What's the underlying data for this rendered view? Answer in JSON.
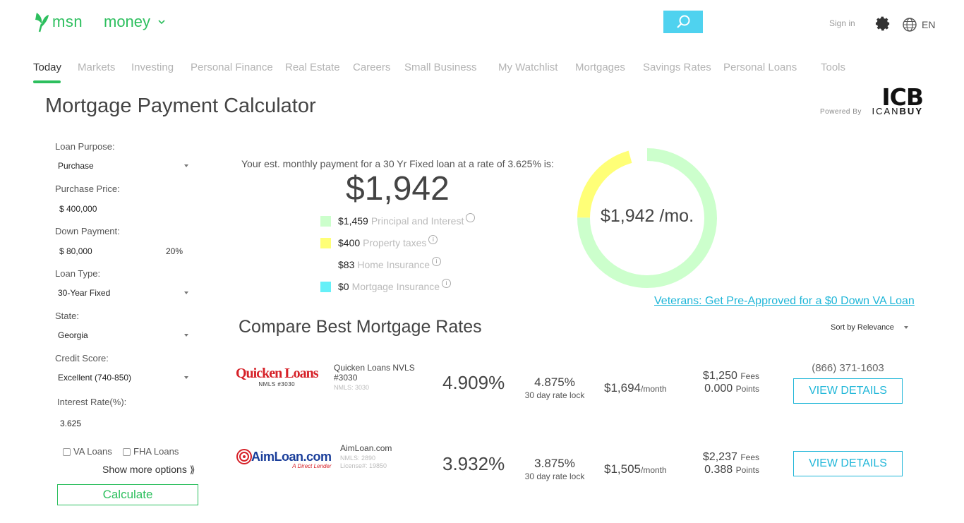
{
  "header": {
    "logo_text": "msn",
    "section": "money",
    "sign_in": "Sign in",
    "language": "EN"
  },
  "nav": {
    "items": [
      "Today",
      "Markets",
      "Investing",
      "Personal Finance",
      "Real Estate",
      "Careers",
      "Small Business",
      "My Watchlist",
      "Mortgages",
      "Savings Rates",
      "Personal Loans",
      "Tools"
    ],
    "active": "Today"
  },
  "page": {
    "title": "Mortgage Payment Calculator",
    "powered_by": "Powered By",
    "partner_short": "ICB",
    "partner_name_a": "ICAN",
    "partner_name_b": "BUY"
  },
  "form": {
    "loan_purpose_label": "Loan Purpose:",
    "loan_purpose_value": "Purchase",
    "purchase_price_label": "Purchase Price:",
    "purchase_price_value": "$ 400,000",
    "down_payment_label": "Down Payment:",
    "down_payment_value": "$ 80,000",
    "down_payment_pct": "20%",
    "loan_type_label": "Loan Type:",
    "loan_type_value": "30-Year Fixed",
    "state_label": "State:",
    "state_value": "Georgia",
    "credit_score_label": "Credit Score:",
    "credit_score_value": "Excellent (740-850)",
    "interest_rate_label": "Interest Rate(%):",
    "interest_rate_value": "3.625",
    "va_loans_label": "VA Loans",
    "fha_loans_label": "FHA Loans",
    "show_more": "Show more options ⟫",
    "calculate": "Calculate"
  },
  "summary": {
    "est_text": "Your est. monthly payment for a 30 Yr Fixed loan at a rate of 3.625% is:",
    "total": "$1,942",
    "donut_label": "$1,942 /mo.",
    "breakdown": [
      {
        "amount": "$1,459",
        "label": "Principal and Interest",
        "color": "#ccffcc",
        "value": 1459
      },
      {
        "amount": "$400",
        "label": "Property taxes",
        "color": "#ffff77",
        "value": 400
      },
      {
        "amount": "$83",
        "label": "Home Insurance",
        "color": "#ffffff",
        "value": 83
      },
      {
        "amount": "$0",
        "label": "Mortgage Insurance",
        "color": "#66f0f8",
        "value": 0
      }
    ],
    "va_link": "Veterans: Get Pre-Approved for a $0 Down VA Loan"
  },
  "compare": {
    "title": "Compare Best Mortgage Rates",
    "sort": "Sort by Relevance",
    "lenders": [
      {
        "logo_main": "Quicken Loans",
        "logo_sub": "NMLS #3030",
        "name": "Quicken Loans NVLS #3030",
        "nmls": "NMLS: 3030",
        "apr": "4.909%",
        "rate": "4.875%",
        "rate_lock": "30 day rate lock",
        "monthly": "$1,694",
        "monthly_unit": "/month",
        "fees": "$1,250",
        "fees_label": "Fees",
        "points": "0.000",
        "points_label": "Points",
        "phone": "(866) 371-1603",
        "button": "VIEW DETAILS"
      },
      {
        "logo_main": "AimLoan.com",
        "logo_sub": "A Direct Lender",
        "name": "AimLoan.com",
        "nmls": "NMLS: 2890",
        "license": "License#: 19850",
        "apr": "3.932%",
        "rate": "3.875%",
        "rate_lock": "30 day rate lock",
        "monthly": "$1,505",
        "monthly_unit": "/month",
        "fees": "$2,237",
        "fees_label": "Fees",
        "points": "0.388",
        "points_label": "Points",
        "button": "VIEW DETAILS"
      }
    ]
  },
  "colors": {
    "brand_green": "#2dbf5e",
    "accent_cyan": "#1fb6d8",
    "search_bg": "#4fd2ef"
  }
}
